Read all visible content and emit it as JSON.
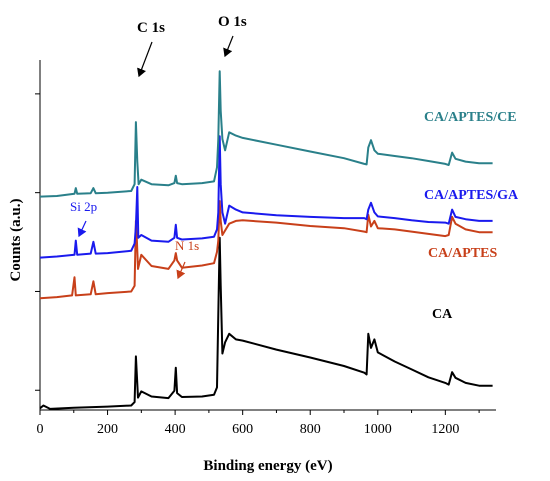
{
  "chart_data": {
    "type": "line",
    "xlabel": "Binding energy (eV)",
    "ylabel": "Counts (a.u.)",
    "xlim": [
      0,
      1350
    ],
    "x_ticks": [
      "0",
      "200",
      "400",
      "600",
      "800",
      "1000",
      "1200"
    ],
    "y_tick_labels_shown": false,
    "grid": false,
    "legend": "inline labels to the right of each curve",
    "annotations": [
      {
        "text": "C 1s",
        "x": 285,
        "color": "#000000"
      },
      {
        "text": "O 1s",
        "x": 532,
        "color": "#000000"
      },
      {
        "text": "Si 2p",
        "x": 102,
        "color": "#1a1aee"
      },
      {
        "text": "N 1s",
        "x": 400,
        "color": "#c8401a"
      }
    ],
    "series": [
      {
        "name": "CA",
        "color": "#000000",
        "points": [
          [
            0,
            0.3
          ],
          [
            10,
            0.8
          ],
          [
            30,
            0.2
          ],
          [
            100,
            0.4
          ],
          [
            200,
            0.6
          ],
          [
            270,
            0.8
          ],
          [
            280,
            1.4
          ],
          [
            284,
            9.5
          ],
          [
            287,
            6
          ],
          [
            290,
            2.2
          ],
          [
            300,
            3.3
          ],
          [
            330,
            2.4
          ],
          [
            380,
            2.1
          ],
          [
            398,
            3.4
          ],
          [
            402,
            7.5
          ],
          [
            406,
            3
          ],
          [
            420,
            2.3
          ],
          [
            480,
            2.4
          ],
          [
            515,
            2.7
          ],
          [
            524,
            4
          ],
          [
            528,
            17
          ],
          [
            532,
            30.5
          ],
          [
            535,
            22
          ],
          [
            540,
            10
          ],
          [
            548,
            12
          ],
          [
            560,
            13.5
          ],
          [
            580,
            12.5
          ],
          [
            600,
            12.3
          ],
          [
            700,
            10.7
          ],
          [
            800,
            9.3
          ],
          [
            900,
            7.8
          ],
          [
            960,
            6.6
          ],
          [
            967,
            6.3
          ],
          [
            972,
            13.5
          ],
          [
            980,
            11
          ],
          [
            990,
            12.5
          ],
          [
            1000,
            10.2
          ],
          [
            1050,
            8.6
          ],
          [
            1100,
            7.2
          ],
          [
            1150,
            5.8
          ],
          [
            1200,
            4.8
          ],
          [
            1210,
            4.5
          ],
          [
            1220,
            6.7
          ],
          [
            1230,
            5.7
          ],
          [
            1260,
            4.8
          ],
          [
            1300,
            4.3
          ],
          [
            1340,
            4.3
          ]
        ]
      },
      {
        "name": "CA/APTES",
        "color": "#c8401a",
        "points": [
          [
            0,
            19.8
          ],
          [
            50,
            20
          ],
          [
            95,
            20.3
          ],
          [
            102,
            23.5
          ],
          [
            106,
            20.3
          ],
          [
            150,
            20.5
          ],
          [
            158,
            22.8
          ],
          [
            165,
            20.5
          ],
          [
            200,
            20.7
          ],
          [
            270,
            21
          ],
          [
            280,
            22
          ],
          [
            284,
            33.5
          ],
          [
            287,
            30
          ],
          [
            290,
            25
          ],
          [
            300,
            27.5
          ],
          [
            330,
            25.5
          ],
          [
            380,
            25
          ],
          [
            398,
            26.5
          ],
          [
            402,
            27.8
          ],
          [
            406,
            26.5
          ],
          [
            420,
            25.2
          ],
          [
            480,
            25.6
          ],
          [
            515,
            26
          ],
          [
            524,
            28
          ],
          [
            528,
            30
          ],
          [
            532,
            37
          ],
          [
            535,
            33.5
          ],
          [
            540,
            31
          ],
          [
            560,
            33
          ],
          [
            580,
            33.5
          ],
          [
            600,
            33.6
          ],
          [
            700,
            33.2
          ],
          [
            800,
            32.6
          ],
          [
            900,
            32.2
          ],
          [
            960,
            31.6
          ],
          [
            967,
            31.5
          ],
          [
            972,
            34.6
          ],
          [
            980,
            32.5
          ],
          [
            990,
            33.5
          ],
          [
            1000,
            32.2
          ],
          [
            1050,
            32
          ],
          [
            1100,
            31.6
          ],
          [
            1150,
            31.2
          ],
          [
            1200,
            30.8
          ],
          [
            1210,
            31
          ],
          [
            1220,
            34.2
          ],
          [
            1230,
            33
          ],
          [
            1260,
            32
          ],
          [
            1300,
            31.5
          ],
          [
            1340,
            31.5
          ]
        ]
      },
      {
        "name": "CA/APTES/GA",
        "color": "#1a1aee",
        "points": [
          [
            0,
            27
          ],
          [
            50,
            27.2
          ],
          [
            102,
            27.5
          ],
          [
            106,
            30
          ],
          [
            110,
            27.5
          ],
          [
            150,
            27.7
          ],
          [
            158,
            29.8
          ],
          [
            165,
            27.7
          ],
          [
            200,
            27.8
          ],
          [
            270,
            28.2
          ],
          [
            280,
            29.5
          ],
          [
            284,
            32.5
          ],
          [
            288,
            39.5
          ],
          [
            291,
            30.5
          ],
          [
            300,
            31
          ],
          [
            330,
            30
          ],
          [
            380,
            29.8
          ],
          [
            398,
            30.5
          ],
          [
            402,
            32.8
          ],
          [
            406,
            30.5
          ],
          [
            420,
            30.2
          ],
          [
            480,
            30.4
          ],
          [
            515,
            30.7
          ],
          [
            524,
            32
          ],
          [
            528,
            35
          ],
          [
            532,
            48.5
          ],
          [
            535,
            40
          ],
          [
            540,
            35
          ],
          [
            548,
            33
          ],
          [
            560,
            36.2
          ],
          [
            580,
            35.5
          ],
          [
            600,
            35
          ],
          [
            700,
            34.5
          ],
          [
            800,
            34.2
          ],
          [
            900,
            34
          ],
          [
            960,
            34
          ],
          [
            967,
            33.8
          ],
          [
            972,
            35.5
          ],
          [
            980,
            36.7
          ],
          [
            990,
            35
          ],
          [
            1000,
            34.3
          ],
          [
            1050,
            34
          ],
          [
            1100,
            33.6
          ],
          [
            1150,
            33.3
          ],
          [
            1200,
            33.2
          ],
          [
            1210,
            33
          ],
          [
            1220,
            35.5
          ],
          [
            1230,
            34.2
          ],
          [
            1260,
            33.8
          ],
          [
            1300,
            33.5
          ],
          [
            1340,
            33.5
          ]
        ]
      },
      {
        "name": "CA/APTES/CE",
        "color": "#2a808a",
        "points": [
          [
            0,
            37.8
          ],
          [
            50,
            37.9
          ],
          [
            102,
            38.3
          ],
          [
            106,
            39.3
          ],
          [
            110,
            38.3
          ],
          [
            150,
            38.4
          ],
          [
            158,
            39.3
          ],
          [
            165,
            38.4
          ],
          [
            200,
            38.5
          ],
          [
            270,
            38.8
          ],
          [
            280,
            40
          ],
          [
            284,
            51
          ],
          [
            288,
            44
          ],
          [
            292,
            40
          ],
          [
            300,
            40.8
          ],
          [
            330,
            40
          ],
          [
            380,
            39.8
          ],
          [
            398,
            40.2
          ],
          [
            402,
            41.5
          ],
          [
            406,
            40.2
          ],
          [
            420,
            40
          ],
          [
            480,
            40.2
          ],
          [
            515,
            40.5
          ],
          [
            524,
            43
          ],
          [
            528,
            48
          ],
          [
            532,
            60
          ],
          [
            535,
            53
          ],
          [
            540,
            48
          ],
          [
            548,
            46
          ],
          [
            560,
            49.2
          ],
          [
            580,
            48.6
          ],
          [
            600,
            48.2
          ],
          [
            700,
            47
          ],
          [
            800,
            45.8
          ],
          [
            900,
            44.6
          ],
          [
            960,
            43.6
          ],
          [
            967,
            43.5
          ],
          [
            972,
            46.5
          ],
          [
            980,
            47.8
          ],
          [
            990,
            46
          ],
          [
            1000,
            45.4
          ],
          [
            1050,
            45
          ],
          [
            1100,
            44.6
          ],
          [
            1150,
            44.1
          ],
          [
            1200,
            43.6
          ],
          [
            1210,
            43.4
          ],
          [
            1220,
            45.6
          ],
          [
            1230,
            44.5
          ],
          [
            1260,
            44
          ],
          [
            1300,
            43.7
          ],
          [
            1340,
            43.7
          ]
        ]
      }
    ]
  }
}
